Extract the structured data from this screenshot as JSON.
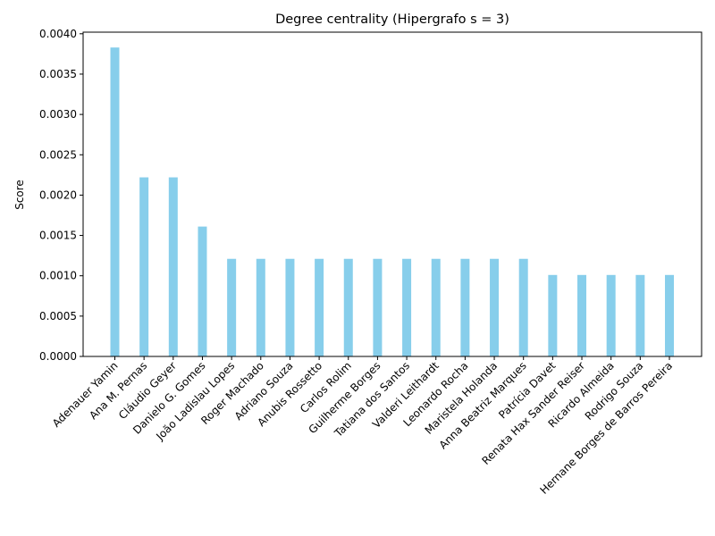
{
  "chart_data": {
    "type": "bar",
    "title": "Degree centrality (Hipergrafo s = 3)",
    "xlabel": "",
    "ylabel": "Score",
    "ylim": [
      0,
      0.00402
    ],
    "yticks": [
      "0.0000",
      "0.0005",
      "0.0010",
      "0.0015",
      "0.0020",
      "0.0025",
      "0.0030",
      "0.0035",
      "0.0040"
    ],
    "grid": false,
    "bar_color": "#87ceeb",
    "categories": [
      "Adenauer Yamin",
      "Ana M. Pernas",
      "Cláudio Geyer",
      "Danielo G. Gomes",
      "João Ladislau Lopes",
      "Roger Machado",
      "Adriano Souza",
      "Anubis Rossetto",
      "Carlos Rolim",
      "Guilherme Borges",
      "Tatiana dos Santos",
      "Valderi Leithardt",
      "Leonardo Rocha",
      "Maristela Holanda",
      "Anna Beatriz Marques",
      "Patrícia Davet",
      "Renata Hax Sander Reiser",
      "Ricardo Almeida",
      "Rodrigo Souza",
      "Hernane Borges de Barros Pereira"
    ],
    "values": [
      0.00383,
      0.00222,
      0.00222,
      0.00161,
      0.00121,
      0.00121,
      0.00121,
      0.00121,
      0.00121,
      0.00121,
      0.00121,
      0.00121,
      0.00121,
      0.00121,
      0.00121,
      0.00101,
      0.00101,
      0.00101,
      0.00101,
      0.00101
    ]
  }
}
